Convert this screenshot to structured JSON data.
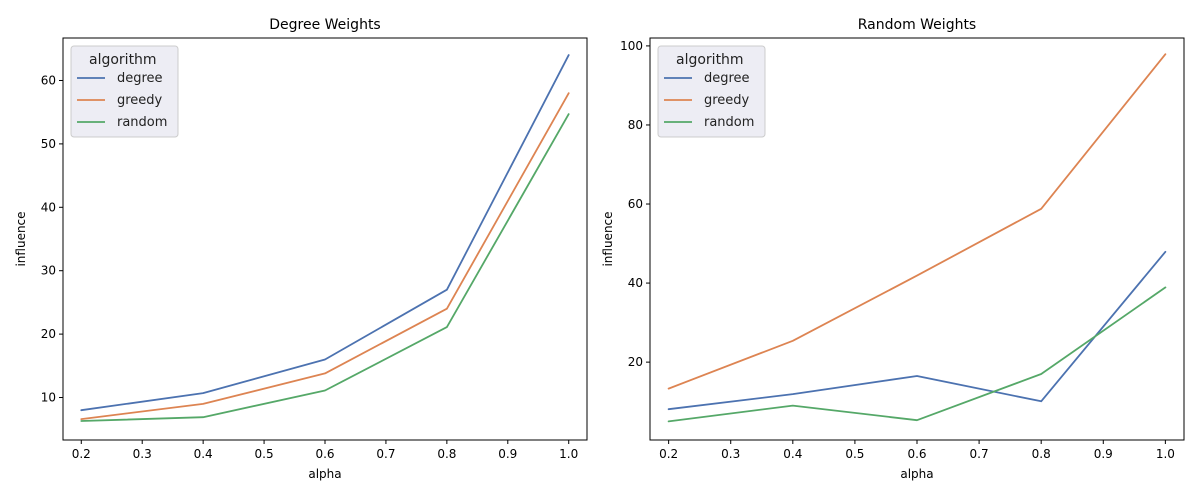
{
  "colors": {
    "degree": "#4c72b0",
    "greedy": "#dd8452",
    "random": "#55a868",
    "legend_bg": "#eaeaf2",
    "legend_border": "#cccccc",
    "axis": "#000000"
  },
  "chart_data": [
    {
      "type": "line",
      "title": "Degree Weights",
      "xlabel": "alpha",
      "ylabel": "influence",
      "xlim": [
        0.17,
        1.03
      ],
      "ylim": [
        3.3,
        66.7
      ],
      "x_ticks": [
        0.2,
        0.3,
        0.4,
        0.5,
        0.6,
        0.7,
        0.8,
        0.9,
        1.0
      ],
      "x_tick_labels": [
        "0.2",
        "0.3",
        "0.4",
        "0.5",
        "0.6",
        "0.7",
        "0.8",
        "0.9",
        "1.0"
      ],
      "y_ticks": [
        10,
        20,
        30,
        40,
        50,
        60
      ],
      "y_tick_labels": [
        "10",
        "20",
        "30",
        "40",
        "50",
        "60"
      ],
      "grid": false,
      "legend": {
        "title": "algorithm",
        "placement": "top-left",
        "entries": [
          "degree",
          "greedy",
          "random"
        ]
      },
      "x": [
        0.2,
        0.4,
        0.6,
        0.8,
        1.0
      ],
      "series": [
        {
          "name": "degree",
          "color": "#4c72b0",
          "values": [
            8.0,
            10.7,
            16.0,
            27.0,
            64.0
          ]
        },
        {
          "name": "greedy",
          "color": "#dd8452",
          "values": [
            6.6,
            9.0,
            13.8,
            24.0,
            58.0
          ]
        },
        {
          "name": "random",
          "color": "#55a868",
          "values": [
            6.3,
            6.9,
            11.1,
            21.1,
            54.7
          ]
        }
      ]
    },
    {
      "type": "line",
      "title": "Random Weights",
      "xlabel": "alpha",
      "ylabel": "influence",
      "xlim": [
        0.17,
        1.03
      ],
      "ylim": [
        0.3,
        102.0
      ],
      "x_ticks": [
        0.2,
        0.3,
        0.4,
        0.5,
        0.6,
        0.7,
        0.8,
        0.9,
        1.0
      ],
      "x_tick_labels": [
        "0.2",
        "0.3",
        "0.4",
        "0.5",
        "0.6",
        "0.7",
        "0.8",
        "0.9",
        "1.0"
      ],
      "y_ticks": [
        20,
        40,
        60,
        80,
        100
      ],
      "y_tick_labels": [
        "20",
        "40",
        "60",
        "80",
        "100"
      ],
      "grid": false,
      "legend": {
        "title": "algorithm",
        "placement": "top-left",
        "entries": [
          "degree",
          "greedy",
          "random"
        ]
      },
      "x": [
        0.2,
        0.4,
        0.6,
        0.8,
        1.0
      ],
      "series": [
        {
          "name": "degree",
          "color": "#4c72b0",
          "values": [
            8.1,
            11.9,
            16.5,
            10.1,
            47.9
          ]
        },
        {
          "name": "greedy",
          "color": "#dd8452",
          "values": [
            13.3,
            25.4,
            41.9,
            58.8,
            97.9
          ]
        },
        {
          "name": "random",
          "color": "#55a868",
          "values": [
            5.0,
            9.0,
            5.3,
            17.0,
            38.9
          ]
        }
      ]
    }
  ]
}
